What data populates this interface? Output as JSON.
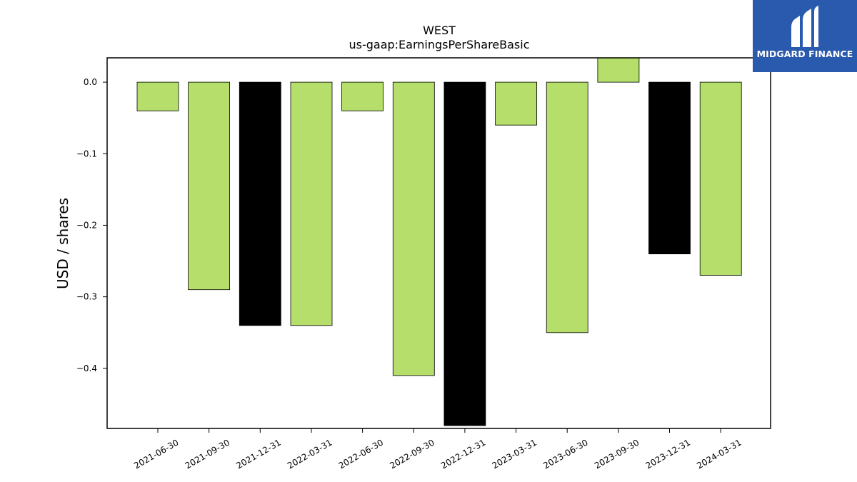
{
  "chart_data": {
    "type": "bar",
    "title": "WEST",
    "subtitle": "us-gaap:EarningsPerShareBasic",
    "xlabel": "",
    "ylabel": "USD / shares",
    "categories": [
      "2021-06-30",
      "2021-09-30",
      "2021-12-31",
      "2022-03-31",
      "2022-06-30",
      "2022-09-30",
      "2022-12-31",
      "2023-03-31",
      "2023-06-30",
      "2023-09-30",
      "2023-12-31",
      "2024-03-31"
    ],
    "values": [
      -0.04,
      -0.29,
      -0.34,
      -0.34,
      -0.04,
      -0.41,
      -0.48,
      -0.06,
      -0.35,
      0.034,
      -0.24,
      -0.27
    ],
    "bar_colors": [
      "#b5df6a",
      "#b5df6a",
      "#000000",
      "#b5df6a",
      "#b5df6a",
      "#b5df6a",
      "#000000",
      "#b5df6a",
      "#b5df6a",
      "#b5df6a",
      "#000000",
      "#b5df6a"
    ],
    "ylim": [
      -0.484,
      0.034
    ],
    "yticks": [
      0.0,
      -0.1,
      -0.2,
      -0.3,
      -0.4
    ],
    "ytick_labels": [
      "0.0",
      "−0.1",
      "−0.2",
      "−0.3",
      "−0.4"
    ],
    "grid": false,
    "legend": "none"
  },
  "logo": {
    "text": "MIDGARD FINANCE",
    "icon": "midgard-logo-icon",
    "background": "#2a5aae"
  }
}
